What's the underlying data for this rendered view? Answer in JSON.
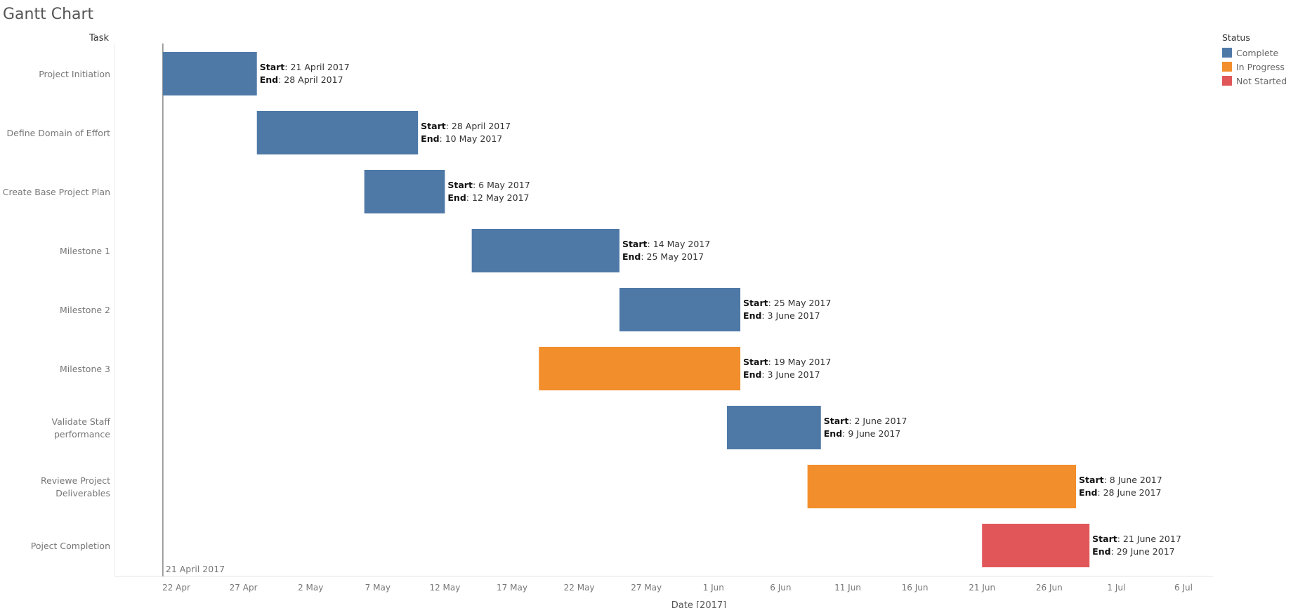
{
  "title": "Gantt Chart",
  "chart_data": {
    "type": "gantt",
    "ylabel": "Task",
    "xlabel": "Date [2017]",
    "xlim": [
      "2017-04-17",
      "2017-07-09"
    ],
    "x_ticks": [
      {
        "date": "2017-04-22",
        "label": "22 Apr"
      },
      {
        "date": "2017-04-27",
        "label": "27 Apr"
      },
      {
        "date": "2017-05-02",
        "label": "2 May"
      },
      {
        "date": "2017-05-07",
        "label": "7 May"
      },
      {
        "date": "2017-05-12",
        "label": "12 May"
      },
      {
        "date": "2017-05-17",
        "label": "17 May"
      },
      {
        "date": "2017-05-22",
        "label": "22 May"
      },
      {
        "date": "2017-05-27",
        "label": "27 May"
      },
      {
        "date": "2017-06-01",
        "label": "1 Jun"
      },
      {
        "date": "2017-06-06",
        "label": "6 Jun"
      },
      {
        "date": "2017-06-11",
        "label": "11 Jun"
      },
      {
        "date": "2017-06-16",
        "label": "16 Jun"
      },
      {
        "date": "2017-06-21",
        "label": "21 Jun"
      },
      {
        "date": "2017-06-26",
        "label": "26 Jun"
      },
      {
        "date": "2017-07-01",
        "label": "1 Jul"
      },
      {
        "date": "2017-07-06",
        "label": "6 Jul"
      }
    ],
    "reference_line": {
      "date": "2017-04-21",
      "label": "21 April 2017"
    },
    "start_prefix": "Start",
    "end_prefix": "End",
    "legend": {
      "title": "Status",
      "placement": "top-right",
      "items": [
        {
          "name": "Complete",
          "color": "#4e79a7"
        },
        {
          "name": "In Progress",
          "color": "#f28e2b"
        },
        {
          "name": "Not Started",
          "color": "#e15759"
        }
      ]
    },
    "tasks": [
      {
        "name": [
          "Project Initiation"
        ],
        "start": "2017-04-21",
        "end": "2017-04-28",
        "status": "Complete",
        "start_text": "21 April 2017",
        "end_text": "28 April 2017"
      },
      {
        "name": [
          "Define Domain of Effort"
        ],
        "start": "2017-04-28",
        "end": "2017-05-10",
        "status": "Complete",
        "start_text": "28 April 2017",
        "end_text": "10 May 2017"
      },
      {
        "name": [
          "Create Base Project Plan"
        ],
        "start": "2017-05-06",
        "end": "2017-05-12",
        "status": "Complete",
        "start_text": "6 May 2017",
        "end_text": "12 May 2017"
      },
      {
        "name": [
          "Milestone 1"
        ],
        "start": "2017-05-14",
        "end": "2017-05-25",
        "status": "Complete",
        "start_text": "14 May 2017",
        "end_text": "25 May 2017"
      },
      {
        "name": [
          "Milestone 2"
        ],
        "start": "2017-05-25",
        "end": "2017-06-03",
        "status": "Complete",
        "start_text": "25 May 2017",
        "end_text": "3 June 2017"
      },
      {
        "name": [
          "Milestone 3"
        ],
        "start": "2017-05-19",
        "end": "2017-06-03",
        "status": "In Progress",
        "start_text": "19 May 2017",
        "end_text": "3 June 2017"
      },
      {
        "name": [
          "Validate  Staff",
          "performance"
        ],
        "start": "2017-06-02",
        "end": "2017-06-09",
        "status": "Complete",
        "start_text": "2 June 2017",
        "end_text": "9 June 2017"
      },
      {
        "name": [
          "Reviewe Project",
          "Deliverables"
        ],
        "start": "2017-06-08",
        "end": "2017-06-28",
        "status": "In Progress",
        "start_text": "8 June 2017",
        "end_text": "28 June 2017"
      },
      {
        "name": [
          "Poject Completion"
        ],
        "start": "2017-06-21",
        "end": "2017-06-29",
        "status": "Not Started",
        "start_text": "21 June 2017",
        "end_text": "29 June 2017"
      }
    ]
  }
}
